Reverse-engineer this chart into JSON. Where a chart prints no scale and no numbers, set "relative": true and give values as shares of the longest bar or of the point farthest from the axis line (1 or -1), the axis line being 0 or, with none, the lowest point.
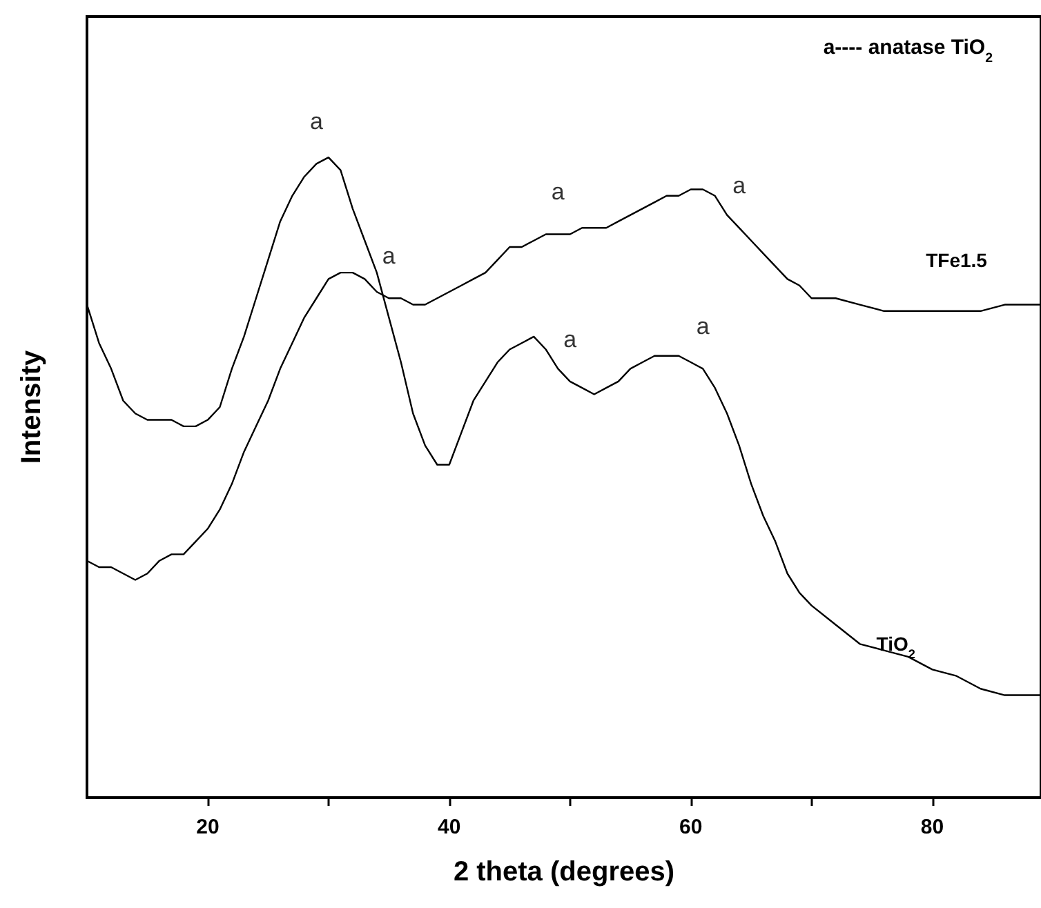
{
  "chart_data": {
    "type": "line",
    "relative": true,
    "xlabel": "2 theta (degrees)",
    "ylabel": "Intensity",
    "x": [
      10,
      11,
      12,
      13,
      14,
      15,
      16,
      17,
      18,
      19,
      20,
      21,
      22,
      23,
      24,
      25,
      26,
      27,
      28,
      29,
      30,
      31,
      32,
      33,
      34,
      35,
      36,
      37,
      38,
      39,
      40,
      41,
      42,
      43,
      44,
      45,
      46,
      47,
      48,
      49,
      50,
      51,
      52,
      53,
      54,
      55,
      56,
      57,
      58,
      59,
      60,
      61,
      62,
      63,
      64,
      65,
      66,
      67,
      68,
      69,
      70,
      72,
      74,
      76,
      78,
      80,
      82,
      84,
      86,
      88,
      89
    ],
    "series": [
      {
        "name": "TiO$_{2}$",
        "color": "#000000",
        "values": [
          0.77,
          0.71,
          0.67,
          0.62,
          0.6,
          0.59,
          0.59,
          0.59,
          0.58,
          0.58,
          0.59,
          0.61,
          0.67,
          0.72,
          0.78,
          0.84,
          0.9,
          0.94,
          0.97,
          0.99,
          1.0,
          0.98,
          0.92,
          0.87,
          0.82,
          0.75,
          0.68,
          0.6,
          0.55,
          0.52,
          0.52,
          0.57,
          0.62,
          0.65,
          0.68,
          0.7,
          0.71,
          0.72,
          0.7,
          0.67,
          0.65,
          0.64,
          0.63,
          0.64,
          0.65,
          0.67,
          0.68,
          0.69,
          0.69,
          0.69,
          0.68,
          0.67,
          0.64,
          0.6,
          0.55,
          0.49,
          0.44,
          0.4,
          0.35,
          0.32,
          0.3,
          0.27,
          0.24,
          0.23,
          0.22,
          0.2,
          0.19,
          0.17,
          0.16,
          0.16,
          0.16
        ]
      },
      {
        "name": "TFe1.5",
        "color": "#000000",
        "values": [
          0.37,
          0.36,
          0.36,
          0.35,
          0.34,
          0.35,
          0.37,
          0.38,
          0.38,
          0.4,
          0.42,
          0.45,
          0.49,
          0.54,
          0.58,
          0.62,
          0.67,
          0.71,
          0.75,
          0.78,
          0.81,
          0.82,
          0.82,
          0.81,
          0.79,
          0.78,
          0.78,
          0.77,
          0.77,
          0.78,
          0.79,
          0.8,
          0.81,
          0.82,
          0.84,
          0.86,
          0.86,
          0.87,
          0.88,
          0.88,
          0.88,
          0.89,
          0.89,
          0.89,
          0.9,
          0.91,
          0.92,
          0.93,
          0.94,
          0.94,
          0.95,
          0.95,
          0.94,
          0.91,
          0.89,
          0.87,
          0.85,
          0.83,
          0.81,
          0.8,
          0.78,
          0.78,
          0.77,
          0.76,
          0.76,
          0.76,
          0.76,
          0.76,
          0.77,
          0.77,
          0.77
        ]
      }
    ],
    "annotations": [
      {
        "text": "a",
        "x": 29,
        "y": 0.99
      },
      {
        "text": "a",
        "x": 35,
        "y": 0.78
      },
      {
        "text": "a",
        "x": 49,
        "y": 0.88
      },
      {
        "text": "a",
        "x": 64,
        "y": 0.89
      },
      {
        "text": "a",
        "x": 50,
        "y": 0.65
      },
      {
        "text": "a",
        "x": 61,
        "y": 0.67
      },
      "a---- anatase TiO$_{2}$"
    ],
    "xlim": [
      10,
      89
    ],
    "xticks": [
      20,
      {
        "value": 30,
        "label": null
      },
      40,
      {
        "value": 50,
        "label": null
      },
      60,
      {
        "value": 70,
        "label": null
      },
      80
    ],
    "grid": false,
    "legend": false,
    "marker": "none",
    "line_style": "solid"
  }
}
